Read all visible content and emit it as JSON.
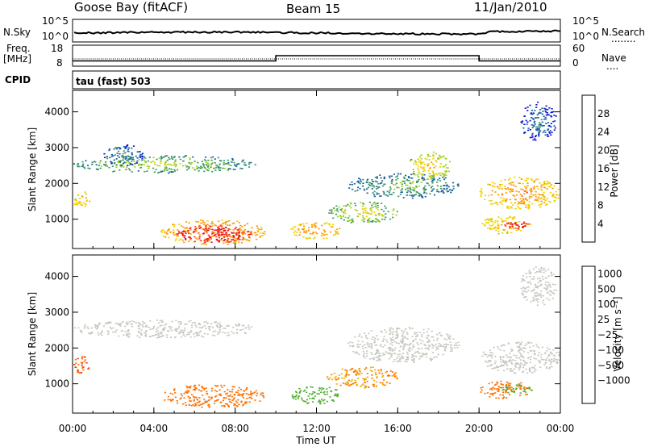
{
  "header": {
    "station": "Goose Bay (fitACF)",
    "beam": "Beam 15",
    "date": "11/Jan/2010"
  },
  "noise_panel": {
    "left_label": "N.Sky",
    "right_label": "N.Search",
    "right_legend": "........",
    "left_ticks": [
      "10^5",
      "10^0"
    ],
    "right_ticks": [
      "10^5",
      "10^0"
    ]
  },
  "freq_panel": {
    "left_label_1": "Freq.",
    "left_label_2": "[MHz]",
    "right_label": "Nave",
    "right_legend": "....",
    "left_ticks": [
      "18",
      "8"
    ],
    "right_ticks": [
      "60",
      "0"
    ]
  },
  "cpid": {
    "label": "CPID",
    "program": "tau (fast) 503"
  },
  "power_colorbar": {
    "label": "Power [dB]",
    "ticks": [
      "28",
      "24",
      "20",
      "16",
      "12",
      "8",
      "4"
    ],
    "colors": [
      "#e81010",
      "#ff4020",
      "#ff9a00",
      "#f0d000",
      "#a0d020",
      "#3a9a60",
      "#1a60a0",
      "#1010d8"
    ]
  },
  "velocity_colorbar": {
    "label": "Velocity [m s⁻¹]",
    "ticks": [
      "1000",
      "500",
      "100",
      "25",
      "−25",
      "−100",
      "−500",
      "−1000"
    ],
    "colors": [
      "#1a40b0",
      "#2a7a60",
      "#50b030",
      "#a0d050",
      "#c8c8c0",
      "#f0b000",
      "#ff7000",
      "#f03010",
      "#e00000"
    ]
  },
  "chart_data": [
    {
      "type": "heatmap",
      "name": "power",
      "ylabel": "Slant Range [km]",
      "x_ticks": [
        "00:00",
        "04:00",
        "08:00",
        "12:00",
        "16:00",
        "20:00",
        "00:00"
      ],
      "y_ticks": [
        "1000",
        "2000",
        "3000",
        "4000"
      ],
      "xlim_hours": [
        0,
        24
      ],
      "ylim_km": [
        180,
        4600
      ],
      "regions": [
        {
          "h0": 0.0,
          "h1": 9.0,
          "km0": 2300,
          "km1": 2800,
          "level": 12
        },
        {
          "h0": 1.5,
          "h1": 3.5,
          "km0": 2500,
          "km1": 3100,
          "level": 8
        },
        {
          "h0": 0.0,
          "h1": 0.8,
          "km0": 1300,
          "km1": 1800,
          "level": 18
        },
        {
          "h0": 4.3,
          "h1": 9.5,
          "km0": 300,
          "km1": 1000,
          "level": 22
        },
        {
          "h0": 5.0,
          "h1": 8.8,
          "km0": 350,
          "km1": 850,
          "level": 28
        },
        {
          "h0": 10.7,
          "h1": 13.2,
          "km0": 450,
          "km1": 950,
          "level": 20
        },
        {
          "h0": 12.5,
          "h1": 16.0,
          "km0": 900,
          "km1": 1500,
          "level": 14
        },
        {
          "h0": 13.5,
          "h1": 19.0,
          "km0": 1600,
          "km1": 2300,
          "level": 10
        },
        {
          "h0": 16.5,
          "h1": 18.6,
          "km0": 2100,
          "km1": 2900,
          "level": 16
        },
        {
          "h0": 20.0,
          "h1": 24.0,
          "km0": 1300,
          "km1": 2200,
          "level": 20
        },
        {
          "h0": 20.0,
          "h1": 22.5,
          "km0": 600,
          "km1": 1100,
          "level": 18
        },
        {
          "h0": 21.2,
          "h1": 22.5,
          "km0": 750,
          "km1": 950,
          "level": 28
        },
        {
          "h0": 22.0,
          "h1": 23.8,
          "km0": 3200,
          "km1": 4300,
          "level": 6
        }
      ]
    },
    {
      "type": "heatmap",
      "name": "velocity",
      "ylabel": "Slant Range [km]",
      "x_ticks": [
        "00:00",
        "04:00",
        "08:00",
        "12:00",
        "16:00",
        "20:00",
        "00:00"
      ],
      "y_ticks": [
        "1000",
        "2000",
        "3000",
        "4000"
      ],
      "xlabel": "Time UT",
      "xlim_hours": [
        0,
        24
      ],
      "ylim_km": [
        180,
        4600
      ],
      "regions": [
        {
          "h0": 0.0,
          "h1": 9.0,
          "km0": 2300,
          "km1": 2800,
          "velocity": 0
        },
        {
          "h0": 0.0,
          "h1": 0.8,
          "km0": 1300,
          "km1": 1800,
          "velocity": -300
        },
        {
          "h0": 4.3,
          "h1": 9.5,
          "km0": 350,
          "km1": 1000,
          "velocity": -150
        },
        {
          "h0": 10.7,
          "h1": 13.2,
          "km0": 450,
          "km1": 950,
          "velocity": 150
        },
        {
          "h0": 12.5,
          "h1": 16.0,
          "km0": 900,
          "km1": 1500,
          "velocity": -60
        },
        {
          "h0": 13.5,
          "h1": 19.0,
          "km0": 1600,
          "km1": 2600,
          "velocity": 0
        },
        {
          "h0": 20.0,
          "h1": 24.0,
          "km0": 1300,
          "km1": 2200,
          "velocity": 0
        },
        {
          "h0": 20.0,
          "h1": 22.5,
          "km0": 600,
          "km1": 1100,
          "velocity": -200
        },
        {
          "h0": 21.0,
          "h1": 22.6,
          "km0": 750,
          "km1": 1000,
          "velocity": 150
        },
        {
          "h0": 22.0,
          "h1": 23.8,
          "km0": 3200,
          "km1": 4300,
          "velocity": 0
        }
      ]
    },
    {
      "type": "line",
      "name": "frequency",
      "x_hours": [
        0,
        10,
        10,
        20,
        20,
        24
      ],
      "freq_mhz": [
        10.5,
        10.5,
        13,
        13,
        10.5,
        10.5
      ],
      "ylim": [
        8,
        18
      ]
    }
  ]
}
